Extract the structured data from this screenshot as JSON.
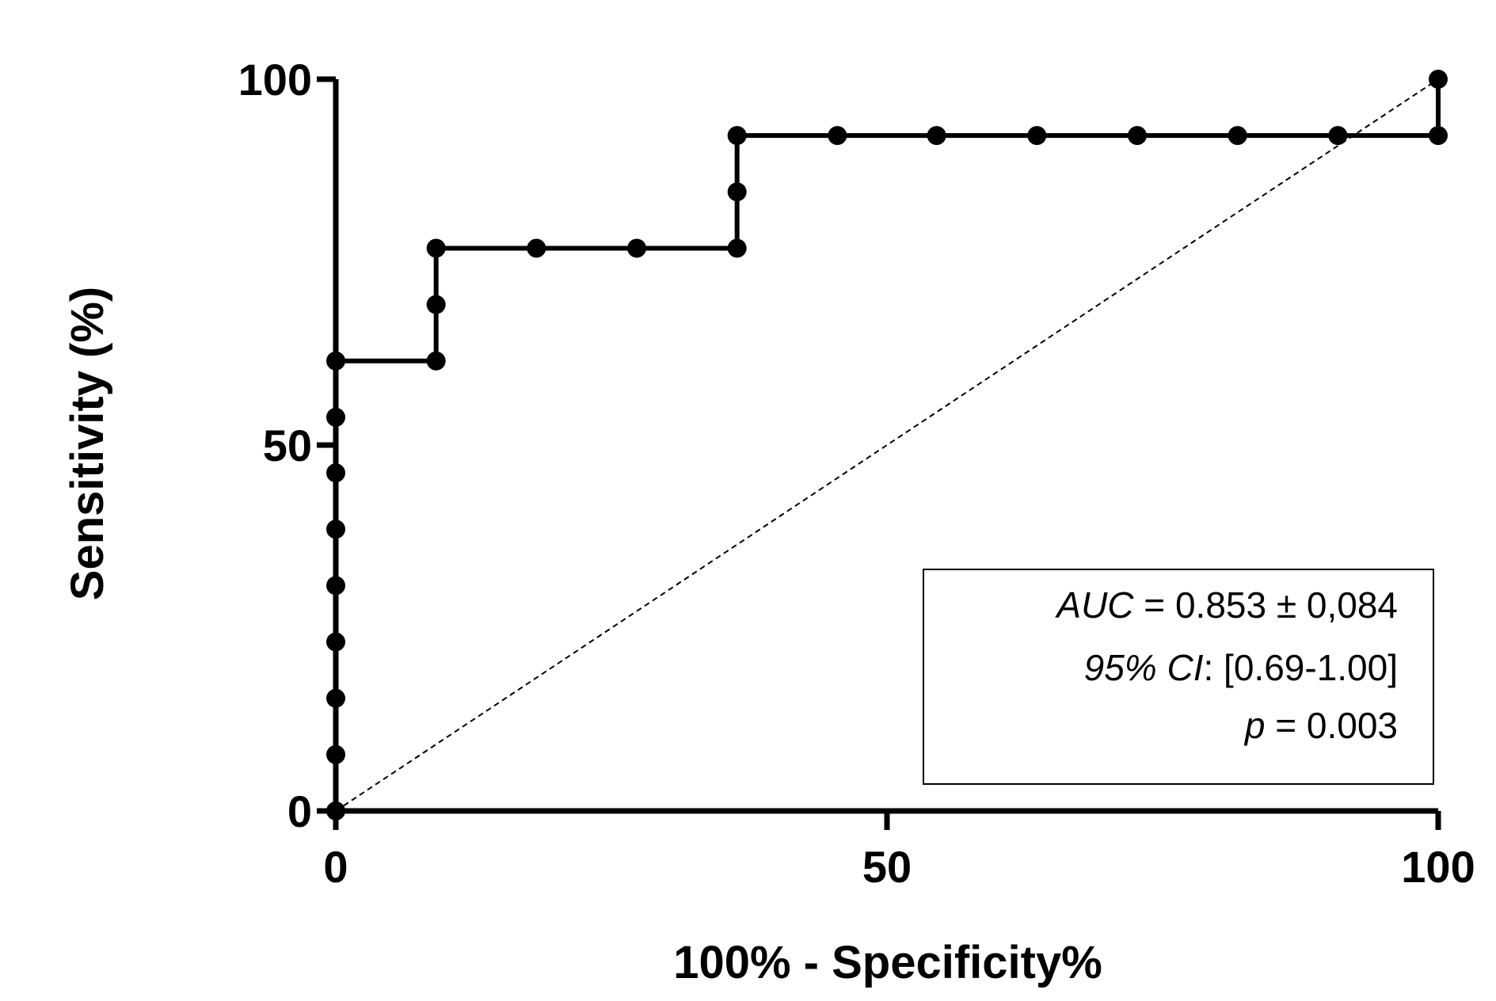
{
  "chart_data": {
    "type": "line",
    "x_label": "100% - Specificity%",
    "y_label": "Sensitivity (%)",
    "x": [
      0,
      0,
      0,
      0,
      0,
      0,
      0,
      0,
      0,
      9.1,
      9.1,
      9.1,
      18.2,
      27.3,
      36.4,
      36.4,
      36.4,
      45.5,
      54.5,
      63.6,
      72.7,
      81.8,
      90.9,
      100,
      100
    ],
    "series": [
      {
        "color": "#000000",
        "values": [
          0,
          7.7,
          15.4,
          23.1,
          30.8,
          38.5,
          46.2,
          53.8,
          61.5,
          61.5,
          69.2,
          76.9,
          76.9,
          76.9,
          76.9,
          84.6,
          92.3,
          92.3,
          92.3,
          92.3,
          92.3,
          92.3,
          92.3,
          92.3,
          100
        ]
      }
    ],
    "diagonal": {
      "x": [
        0,
        100
      ],
      "values": [
        0,
        100
      ],
      "style": "dashed"
    },
    "xlim": [
      0,
      100
    ],
    "ylim": [
      0,
      100
    ],
    "xticks": [
      0,
      50,
      100
    ],
    "yticks": [
      0,
      50,
      100
    ],
    "grid": false,
    "annotations": [
      {
        "italic": "AUC",
        "text": " = 0.853 ± 0,084"
      },
      {
        "italic": "95% CI",
        "text": ": [0.69-1.00]"
      },
      {
        "italic": "p",
        "text": " = 0.003"
      }
    ]
  }
}
